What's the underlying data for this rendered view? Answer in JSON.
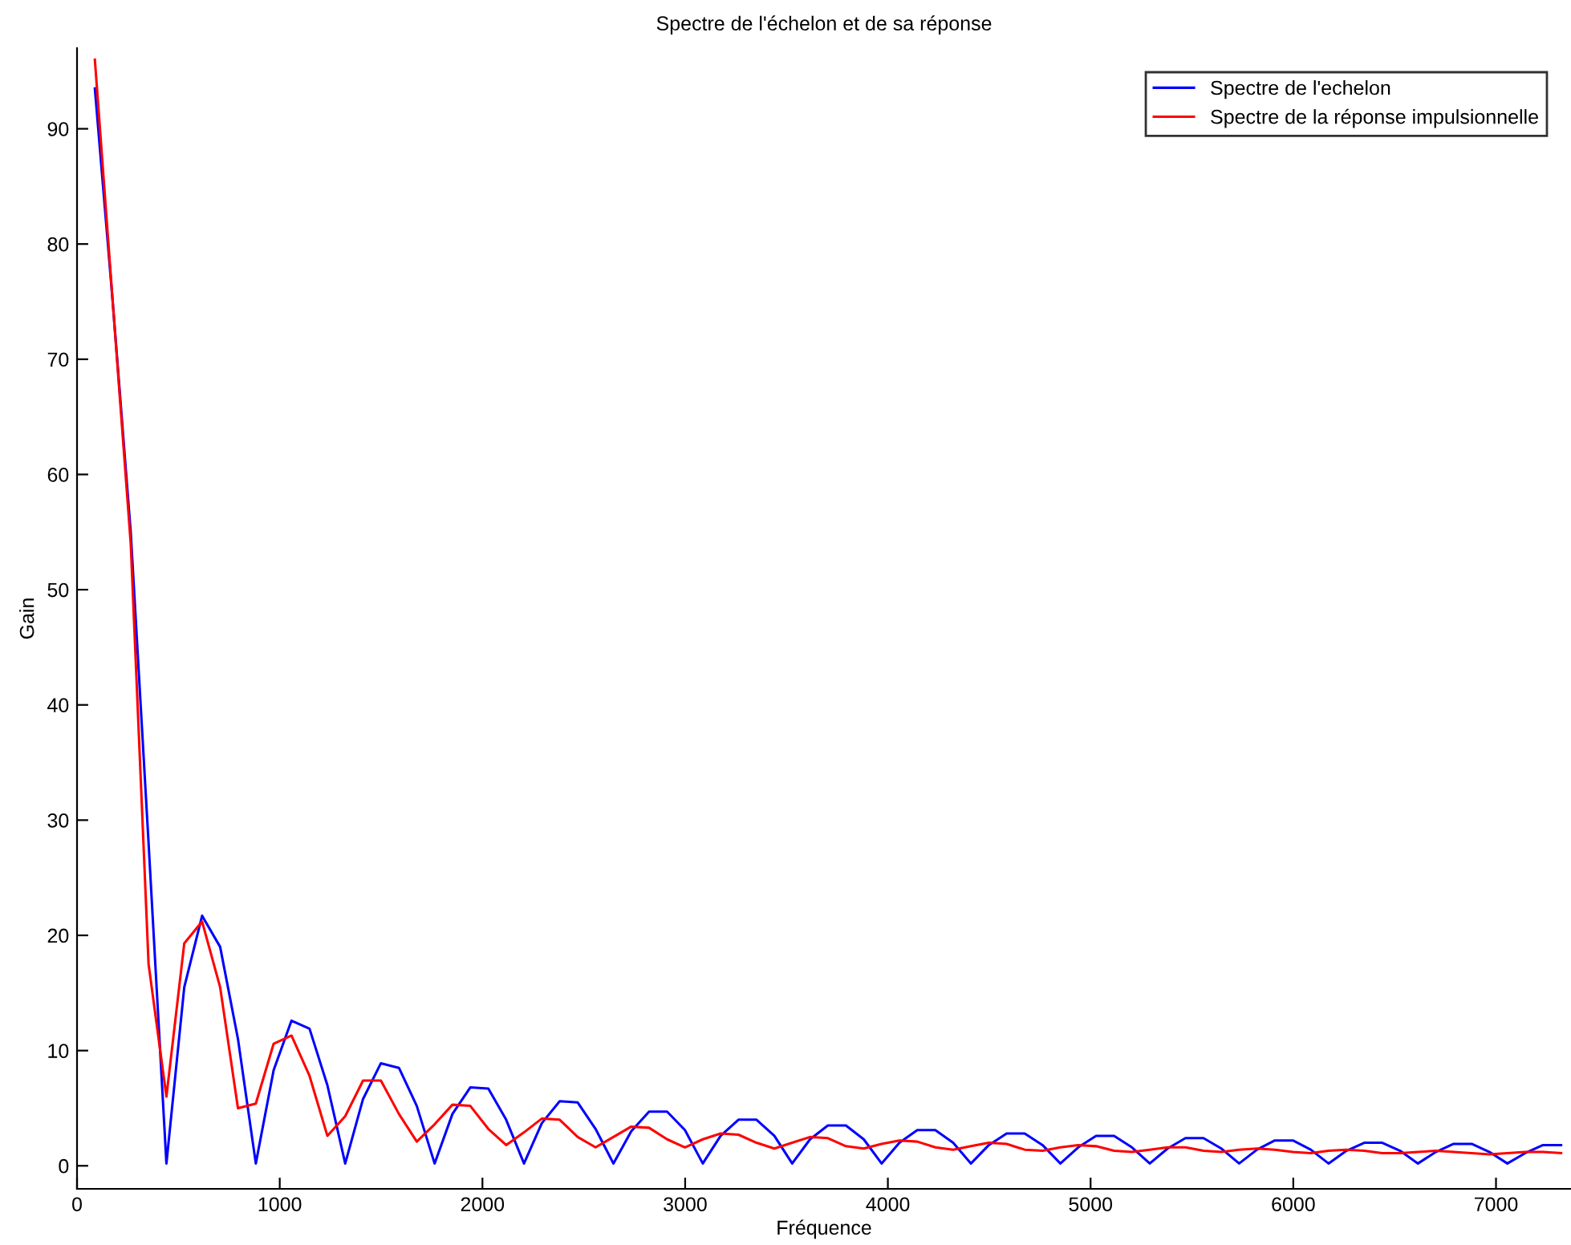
{
  "chart_data": {
    "type": "line",
    "title": "Spectre de l'échelon et de sa réponse",
    "xlabel": "Fréquence",
    "ylabel": "Gain",
    "x": [
      88,
      176,
      265,
      353,
      441,
      529,
      617,
      706,
      794,
      882,
      970,
      1058,
      1147,
      1235,
      1323,
      1411,
      1499,
      1588,
      1676,
      1764,
      1852,
      1940,
      2029,
      2117,
      2205,
      2293,
      2381,
      2470,
      2558,
      2646,
      2734,
      2822,
      2911,
      2999,
      3087,
      3175,
      3263,
      3352,
      3440,
      3528,
      3616,
      3704,
      3793,
      3881,
      3969,
      4057,
      4145,
      4234,
      4322,
      4410,
      4498,
      4586,
      4675,
      4763,
      4851,
      4939,
      5027,
      5116,
      5204,
      5292,
      5380,
      5468,
      5557,
      5645,
      5733,
      5821,
      5909,
      5998,
      6086,
      6174,
      6262,
      6350,
      6439,
      6527,
      6615,
      6703,
      6791,
      6880,
      6968,
      7056,
      7144,
      7232,
      7321
    ],
    "series": [
      {
        "name": "Spectre de l'echelon",
        "color": "#0000ff",
        "values": [
          93.5,
          75,
          55,
          28,
          0.2,
          15.5,
          21.7,
          19,
          11,
          0.2,
          8.3,
          12.6,
          11.9,
          7,
          0.2,
          5.8,
          8.9,
          8.5,
          5.2,
          0.2,
          4.5,
          6.8,
          6.7,
          4.0,
          0.2,
          3.7,
          5.6,
          5.5,
          3.2,
          0.2,
          3.0,
          4.7,
          4.7,
          3.1,
          0.2,
          2.6,
          4.0,
          4.0,
          2.6,
          0.2,
          2.3,
          3.5,
          3.5,
          2.3,
          0.2,
          2.0,
          3.1,
          3.1,
          2.0,
          0.2,
          1.8,
          2.8,
          2.8,
          1.8,
          0.2,
          1.6,
          2.6,
          2.6,
          1.6,
          0.2,
          1.5,
          2.4,
          2.4,
          1.5,
          0.2,
          1.4,
          2.2,
          2.2,
          1.4,
          0.2,
          1.3,
          2.0,
          2.0,
          1.3,
          0.2,
          1.2,
          1.9,
          1.9,
          1.2,
          0.2,
          1.1,
          1.8,
          1.8
        ]
      },
      {
        "name": "Spectre de la réponse impulsionnelle",
        "color": "#ff0000",
        "values": [
          96,
          75,
          54,
          17.5,
          6,
          19.3,
          21.2,
          15.5,
          5,
          5.4,
          10.6,
          11.3,
          7.8,
          2.6,
          4.3,
          7.4,
          7.4,
          4.5,
          2.1,
          3.6,
          5.3,
          5.2,
          3.2,
          1.8,
          2.9,
          4.1,
          4.0,
          2.5,
          1.6,
          2.5,
          3.4,
          3.3,
          2.3,
          1.6,
          2.3,
          2.8,
          2.7,
          2.0,
          1.5,
          2.0,
          2.5,
          2.4,
          1.7,
          1.5,
          1.9,
          2.2,
          2.1,
          1.6,
          1.4,
          1.7,
          2.0,
          1.9,
          1.4,
          1.3,
          1.6,
          1.8,
          1.7,
          1.3,
          1.2,
          1.4,
          1.6,
          1.6,
          1.3,
          1.2,
          1.4,
          1.5,
          1.4,
          1.2,
          1.1,
          1.3,
          1.4,
          1.3,
          1.1,
          1.1,
          1.2,
          1.3,
          1.2,
          1.1,
          1.0,
          1.1,
          1.2,
          1.2,
          1.1
        ]
      }
    ],
    "xlim": [
      0,
      7370
    ],
    "ylim": [
      -2,
      97
    ],
    "xticks": [
      0,
      1000,
      2000,
      3000,
      4000,
      5000,
      6000,
      7000
    ],
    "yticks": [
      0,
      10,
      20,
      30,
      40,
      50,
      60,
      70,
      80,
      90
    ],
    "grid": false,
    "legend": "top right",
    "marker": "none",
    "line_style": "solid"
  }
}
